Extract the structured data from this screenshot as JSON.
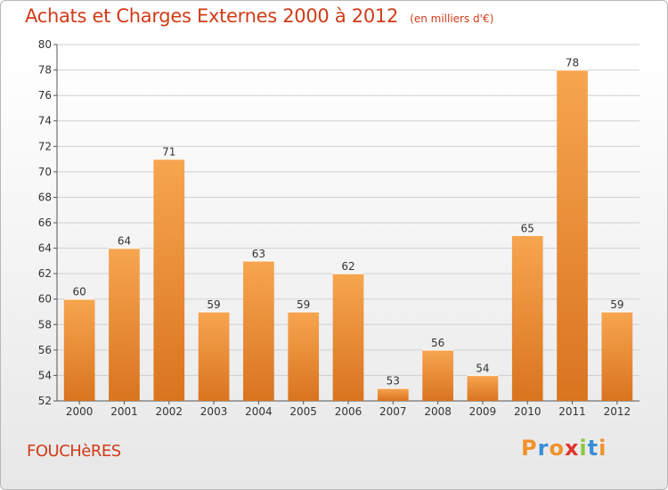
{
  "header": {
    "title": "Achats et Charges Externes 2000 à 2012",
    "subtitle": "(en milliers d'€)"
  },
  "footer": {
    "place": "FOUCHèRES",
    "logo": "Proxiti",
    "logo_colors": [
      "#f0922b",
      "#3b8ed6",
      "#f0922b",
      "#e0342a",
      "#8dc63f",
      "#3b8ed6",
      "#f0922b"
    ]
  },
  "colors": {
    "title": "#d13b18",
    "bar_light": "#f7a550",
    "bar_dark": "#d9741f",
    "grid": "#cfcfcf"
  },
  "chart_data": {
    "type": "bar",
    "title": "Achats et Charges Externes 2000 à 2012",
    "subtitle": "(en milliers d'€)",
    "categories": [
      "2000",
      "2001",
      "2002",
      "2003",
      "2004",
      "2005",
      "2006",
      "2007",
      "2008",
      "2009",
      "2010",
      "2011",
      "2012"
    ],
    "values": [
      60,
      64,
      71,
      59,
      63,
      59,
      62,
      53,
      56,
      54,
      65,
      78,
      59
    ],
    "ylim": [
      52,
      80
    ],
    "yticks": [
      52,
      54,
      56,
      58,
      60,
      62,
      64,
      66,
      68,
      70,
      72,
      74,
      76,
      78,
      80
    ],
    "grid": true,
    "data_labels": true
  }
}
